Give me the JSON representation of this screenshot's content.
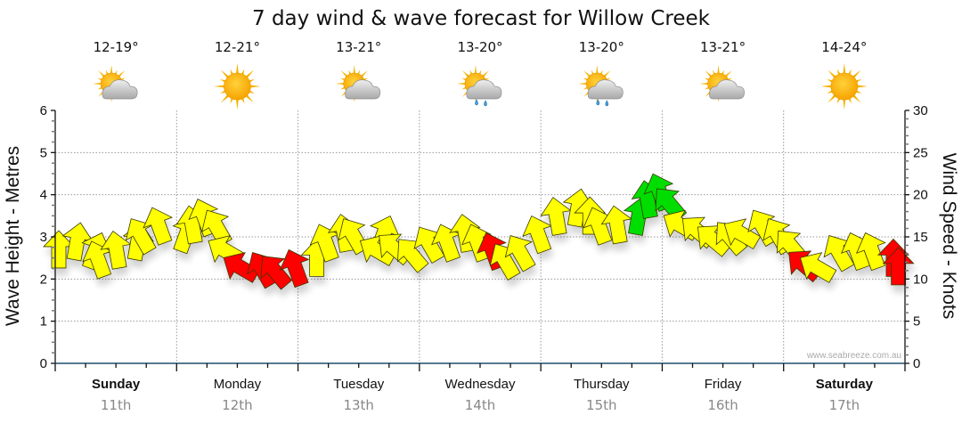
{
  "chart_data": {
    "type": "scatter",
    "title": "7 day wind & wave forecast for Willow Creek",
    "ylabel_left": "Wave Height - Metres",
    "ylabel_right": "Wind Speed - Knots",
    "ylim_left": [
      0,
      6
    ],
    "ylim_right": [
      0,
      30
    ],
    "yticks_left": [
      "0",
      "1",
      "2",
      "3",
      "4",
      "5",
      "6"
    ],
    "yticks_right": [
      "0",
      "5",
      "10",
      "15",
      "20",
      "25",
      "30"
    ],
    "grid": true,
    "watermark": "www.seabreeze.com.au",
    "days": [
      {
        "name": "Sunday",
        "date": "11th",
        "temp": "12-19°",
        "icon": "partly-cloudy-icon",
        "bold": true
      },
      {
        "name": "Monday",
        "date": "12th",
        "temp": "12-21°",
        "icon": "sunny-icon",
        "bold": false
      },
      {
        "name": "Tuesday",
        "date": "13th",
        "temp": "13-21°",
        "icon": "partly-cloudy-icon",
        "bold": false
      },
      {
        "name": "Wednesday",
        "date": "14th",
        "temp": "13-20°",
        "icon": "showers-icon",
        "bold": false
      },
      {
        "name": "Thursday",
        "date": "15th",
        "temp": "13-20°",
        "icon": "showers-icon",
        "bold": false
      },
      {
        "name": "Friday",
        "date": "16th",
        "temp": "13-21°",
        "icon": "partly-cloudy-icon",
        "bold": false
      },
      {
        "name": "Saturday",
        "date": "17th",
        "temp": "14-24°",
        "icon": "sunny-icon",
        "bold": true
      }
    ],
    "colors": {
      "light": "#ffff00",
      "moderate": "#00dd00",
      "offshore": "#ff0000"
    },
    "series": [
      {
        "name": "wind",
        "units": "knots",
        "hours_from_start": [
          0,
          3,
          6,
          9,
          12,
          15,
          18,
          21,
          24,
          27,
          30,
          33,
          36,
          39,
          42,
          45,
          48,
          51,
          54,
          57,
          60,
          63,
          66,
          69,
          72,
          75,
          78,
          81,
          84,
          87,
          90,
          93,
          96,
          99,
          102,
          105,
          108,
          111,
          114,
          117,
          120,
          123,
          126,
          129,
          132,
          135,
          138,
          141,
          144,
          147,
          150,
          153,
          156,
          159,
          162,
          165,
          166
        ],
        "speed": [
          13,
          14,
          13,
          12,
          13,
          14,
          15,
          16,
          15,
          16,
          17,
          16,
          14,
          12,
          11,
          11,
          11,
          12,
          14,
          15,
          15,
          15,
          14,
          14,
          13,
          14,
          14,
          15,
          14,
          13,
          12,
          13,
          15,
          17,
          18,
          17,
          16,
          16,
          17,
          19,
          20,
          19,
          17,
          16,
          15,
          15,
          16,
          16,
          15,
          14,
          12,
          12,
          13,
          13,
          13,
          12,
          11
        ],
        "direction_deg": [
          0,
          10,
          20,
          340,
          350,
          10,
          330,
          340,
          20,
          350,
          340,
          330,
          300,
          300,
          330,
          320,
          340,
          0,
          340,
          350,
          330,
          20,
          300,
          310,
          320,
          330,
          340,
          350,
          340,
          340,
          330,
          330,
          340,
          350,
          10,
          0,
          340,
          350,
          10,
          350,
          340,
          320,
          300,
          310,
          310,
          320,
          300,
          330,
          330,
          320,
          310,
          300,
          330,
          340,
          340,
          0,
          0
        ],
        "category": [
          "light",
          "light",
          "light",
          "light",
          "light",
          "light",
          "light",
          "light",
          "light",
          "light",
          "light",
          "light",
          "light",
          "offshore",
          "offshore",
          "offshore",
          "offshore",
          "light",
          "light",
          "light",
          "light",
          "light",
          "light",
          "light",
          "light",
          "light",
          "light",
          "light",
          "light",
          "offshore",
          "light",
          "light",
          "light",
          "light",
          "light",
          "light",
          "light",
          "light",
          "moderate",
          "moderate",
          "moderate",
          "moderate",
          "light",
          "light",
          "light",
          "light",
          "light",
          "light",
          "light",
          "light",
          "offshore",
          "light",
          "light",
          "light",
          "light",
          "offshore",
          "offshore"
        ]
      }
    ]
  }
}
